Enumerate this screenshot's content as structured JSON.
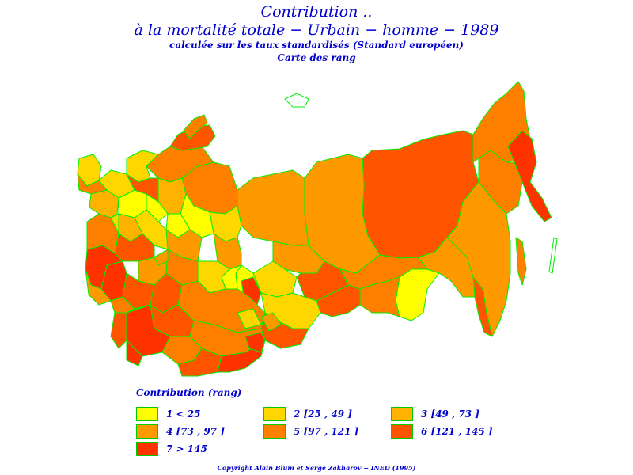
{
  "header": {
    "title_line1": "Contribution ..",
    "title_line2": "à la mortalité totale − Urbain − homme − 1989",
    "subtitle": "calculée sur les taux standardisés (Standard européen)",
    "subtitle2": "Carte des rang"
  },
  "legend": {
    "title": "Contribution (rang)",
    "items": [
      {
        "label": "1 < 25",
        "color": "#ffff00"
      },
      {
        "label": "2 [25 , 49 ]",
        "color": "#ffd700"
      },
      {
        "label": "3 [49 , 73 ]",
        "color": "#ffb300"
      },
      {
        "label": "4 [73 , 97 ]",
        "color": "#ff9900"
      },
      {
        "label": "5 [97 , 121 ]",
        "color": "#ff7f00"
      },
      {
        "label": "6 [121 , 145 ]",
        "color": "#ff5500"
      },
      {
        "label": "7 > 145",
        "color": "#ff3300"
      }
    ]
  },
  "colors": {
    "text": "#0000cc",
    "border": "#00ee00"
  },
  "footer": {
    "copyright": "Copyright Alain Blum et Serge Zakharov − INED (1995)"
  }
}
